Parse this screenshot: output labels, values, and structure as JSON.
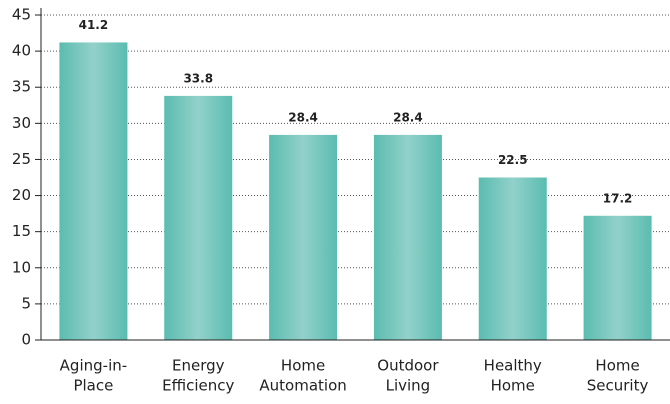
{
  "chart_data": {
    "type": "bar",
    "categories": [
      [
        "Aging-in-",
        "Place"
      ],
      [
        "Energy",
        "Efficiency"
      ],
      [
        "Home",
        "Automation"
      ],
      [
        "Outdoor",
        "Living"
      ],
      [
        "Healthy",
        "Home"
      ],
      [
        "Home",
        "Security"
      ]
    ],
    "values": [
      41.2,
      33.8,
      28.4,
      28.4,
      22.5,
      17.2
    ],
    "color": "#5dbcb1",
    "ylim": [
      0,
      45
    ],
    "yticks": [
      0,
      5,
      10,
      15,
      20,
      25,
      30,
      35,
      40,
      45
    ],
    "grid": true
  }
}
